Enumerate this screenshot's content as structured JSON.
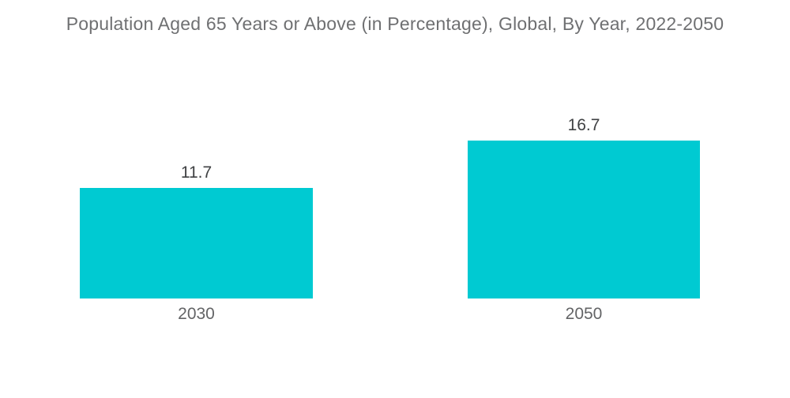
{
  "title": "Population Aged 65 Years or Above (in Percentage), Global, By Year, 2022-2050",
  "colors": {
    "bar": "#00CAD2",
    "title_text": "#6F7072",
    "value_text": "#3F4143",
    "axis_text": "#636466",
    "background": "#FFFFFF"
  },
  "chart_data": {
    "type": "bar",
    "title": "Population Aged 65 Years or Above (in Percentage), Global, By Year, 2022-2050",
    "categories": [
      "2030",
      "2050"
    ],
    "values": [
      11.7,
      16.7
    ],
    "value_labels": [
      "11.7",
      "16.7"
    ],
    "xlabel": "",
    "ylabel": "",
    "ylim": [
      0,
      16.7
    ],
    "grid": false,
    "legend": "none",
    "bar_color": "#00CAD2"
  }
}
